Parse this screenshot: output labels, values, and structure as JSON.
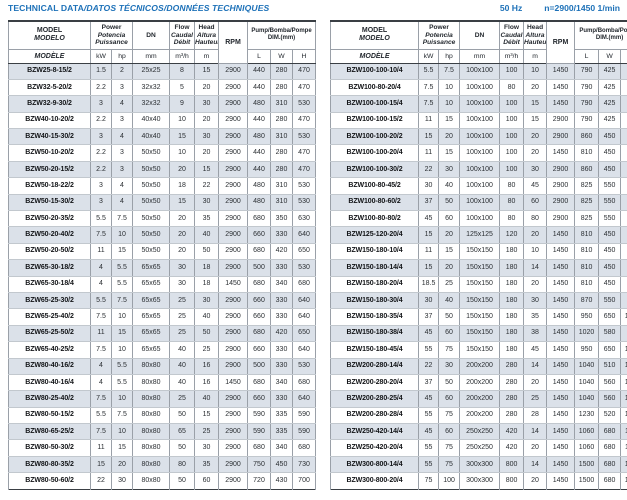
{
  "page": {
    "title_main": "TECHNICAL DATA",
    "title_rest": "/DATOS TÉCNICOS/DONNÉES TECHNIQUES",
    "frequency": "50 Hz",
    "speed": "n=2900/1450 1/min"
  },
  "colors": {
    "accent_blue": "#1d71b8",
    "row_shade": "#dbe1e9",
    "grid_line": "#9aa0a8",
    "heavy_line": "#3a3f44"
  },
  "header": {
    "model_line1": "MODEL",
    "model_line2": "MODELO",
    "model_line3": "MODÈLE",
    "power_line1": "Power",
    "power_line2": "Potencia",
    "power_line3": "Puissance",
    "unit_kw": "kW",
    "unit_hp": "hp",
    "dn": "DN",
    "unit_mm": "mm",
    "flow_line1": "Flow",
    "flow_line2": "Caudal",
    "flow_line3": "Débit",
    "unit_flow": "m³/h",
    "head_line1": "Head",
    "head_line2": "Altura",
    "head_line3": "Hauteur",
    "unit_m": "m",
    "rpm": "RPM",
    "dim_line1": "Pump/Bomba/Pompe",
    "dim_line2": "DIM.(mm)",
    "unit_l": "L",
    "unit_w": "W",
    "unit_h": "H"
  },
  "tables": {
    "left": {
      "rows": [
        [
          "BZW25-8-15/2",
          "1.5",
          "2",
          "25x25",
          "8",
          "15",
          "2900",
          "440",
          "280",
          "470"
        ],
        [
          "BZW32-5-20/2",
          "2.2",
          "3",
          "32x32",
          "5",
          "20",
          "2900",
          "440",
          "280",
          "470"
        ],
        [
          "BZW32-9-30/2",
          "3",
          "4",
          "32x32",
          "9",
          "30",
          "2900",
          "480",
          "310",
          "530"
        ],
        [
          "BZW40-10-20/2",
          "2.2",
          "3",
          "40x40",
          "10",
          "20",
          "2900",
          "440",
          "280",
          "470"
        ],
        [
          "BZW40-15-30/2",
          "3",
          "4",
          "40x40",
          "15",
          "30",
          "2900",
          "480",
          "310",
          "530"
        ],
        [
          "BZW50-10-20/2",
          "2.2",
          "3",
          "50x50",
          "10",
          "20",
          "2900",
          "440",
          "280",
          "470"
        ],
        [
          "BZW50-20-15/2",
          "2.2",
          "3",
          "50x50",
          "20",
          "15",
          "2900",
          "440",
          "280",
          "470"
        ],
        [
          "BZW50-18-22/2",
          "3",
          "4",
          "50x50",
          "18",
          "22",
          "2900",
          "480",
          "310",
          "530"
        ],
        [
          "BZW50-15-30/2",
          "3",
          "4",
          "50x50",
          "15",
          "30",
          "2900",
          "480",
          "310",
          "530"
        ],
        [
          "BZW50-20-35/2",
          "5.5",
          "7.5",
          "50x50",
          "20",
          "35",
          "2900",
          "680",
          "350",
          "630"
        ],
        [
          "BZW50-20-40/2",
          "7.5",
          "10",
          "50x50",
          "20",
          "40",
          "2900",
          "660",
          "330",
          "640"
        ],
        [
          "BZW50-20-50/2",
          "11",
          "15",
          "50x50",
          "20",
          "50",
          "2900",
          "680",
          "420",
          "650"
        ],
        [
          "BZW65-30-18/2",
          "4",
          "5.5",
          "65x65",
          "30",
          "18",
          "2900",
          "500",
          "330",
          "530"
        ],
        [
          "BZW65-30-18/4",
          "4",
          "5.5",
          "65x65",
          "30",
          "18",
          "1450",
          "680",
          "340",
          "680"
        ],
        [
          "BZW65-25-30/2",
          "5.5",
          "7.5",
          "65x65",
          "25",
          "30",
          "2900",
          "660",
          "330",
          "640"
        ],
        [
          "BZW65-25-40/2",
          "7.5",
          "10",
          "65x65",
          "25",
          "40",
          "2900",
          "660",
          "330",
          "640"
        ],
        [
          "BZW65-25-50/2",
          "11",
          "15",
          "65x65",
          "25",
          "50",
          "2900",
          "680",
          "420",
          "650"
        ],
        [
          "BZW65-40-25/2",
          "7.5",
          "10",
          "65x65",
          "40",
          "25",
          "2900",
          "660",
          "330",
          "640"
        ],
        [
          "BZW80-40-16/2",
          "4",
          "5.5",
          "80x80",
          "40",
          "16",
          "2900",
          "500",
          "330",
          "530"
        ],
        [
          "BZW80-40-16/4",
          "4",
          "5.5",
          "80x80",
          "40",
          "16",
          "1450",
          "680",
          "340",
          "680"
        ],
        [
          "BZW80-25-40/2",
          "7.5",
          "10",
          "80x80",
          "25",
          "40",
          "2900",
          "660",
          "330",
          "640"
        ],
        [
          "BZW80-50-15/2",
          "5.5",
          "7.5",
          "80x80",
          "50",
          "15",
          "2900",
          "590",
          "335",
          "590"
        ],
        [
          "BZW80-65-25/2",
          "7.5",
          "10",
          "80x80",
          "65",
          "25",
          "2900",
          "590",
          "335",
          "590"
        ],
        [
          "BZW80-50-30/2",
          "11",
          "15",
          "80x80",
          "50",
          "30",
          "2900",
          "680",
          "340",
          "680"
        ],
        [
          "BZW80-80-35/2",
          "15",
          "20",
          "80x80",
          "80",
          "35",
          "2900",
          "750",
          "450",
          "730"
        ],
        [
          "BZW80-50-60/2",
          "22",
          "30",
          "80x80",
          "50",
          "60",
          "2900",
          "720",
          "430",
          "700"
        ]
      ]
    },
    "right": {
      "rows": [
        [
          "BZW100-100-10/4",
          "5.5",
          "7.5",
          "100x100",
          "100",
          "10",
          "1450",
          "790",
          "425",
          "800"
        ],
        [
          "BZW100-80-20/4",
          "7.5",
          "10",
          "100x100",
          "80",
          "20",
          "1450",
          "790",
          "425",
          "800"
        ],
        [
          "BZW100-100-15/4",
          "7.5",
          "10",
          "100x100",
          "100",
          "15",
          "1450",
          "790",
          "425",
          "800"
        ],
        [
          "BZW100-100-15/2",
          "11",
          "15",
          "100x100",
          "100",
          "15",
          "2900",
          "790",
          "425",
          "800"
        ],
        [
          "BZW100-100-20/2",
          "15",
          "20",
          "100x100",
          "100",
          "20",
          "2900",
          "860",
          "450",
          "820"
        ],
        [
          "BZW100-100-20/4",
          "11",
          "15",
          "100x100",
          "100",
          "20",
          "1450",
          "810",
          "450",
          "880"
        ],
        [
          "BZW100-100-30/2",
          "22",
          "30",
          "100x100",
          "100",
          "30",
          "2900",
          "860",
          "450",
          "820"
        ],
        [
          "BZW100-80-45/2",
          "30",
          "40",
          "100x100",
          "80",
          "45",
          "2900",
          "825",
          "550",
          "840"
        ],
        [
          "BZW100-80-60/2",
          "37",
          "50",
          "100x100",
          "80",
          "60",
          "2900",
          "825",
          "550",
          "840"
        ],
        [
          "BZW100-80-80/2",
          "45",
          "60",
          "100x100",
          "80",
          "80",
          "2900",
          "825",
          "550",
          "840"
        ],
        [
          "BZW125-120-20/4",
          "15",
          "20",
          "125x125",
          "120",
          "20",
          "1450",
          "810",
          "450",
          "880"
        ],
        [
          "BZW150-180-10/4",
          "11",
          "15",
          "150x150",
          "180",
          "10",
          "1450",
          "810",
          "450",
          "880"
        ],
        [
          "BZW150-180-14/4",
          "15",
          "20",
          "150x150",
          "180",
          "14",
          "1450",
          "810",
          "450",
          "880"
        ],
        [
          "BZW150-180-20/4",
          "18.5",
          "25",
          "150x150",
          "180",
          "20",
          "1450",
          "810",
          "450",
          "880"
        ],
        [
          "BZW150-180-30/4",
          "30",
          "40",
          "150x150",
          "180",
          "30",
          "1450",
          "870",
          "550",
          "990"
        ],
        [
          "BZW150-180-35/4",
          "37",
          "50",
          "150x150",
          "180",
          "35",
          "1450",
          "950",
          "650",
          "1065"
        ],
        [
          "BZW150-180-38/4",
          "45",
          "60",
          "150x150",
          "180",
          "38",
          "1450",
          "1020",
          "580",
          "930"
        ],
        [
          "BZW150-180-45/4",
          "55",
          "75",
          "150x150",
          "180",
          "45",
          "1450",
          "950",
          "650",
          "1065"
        ],
        [
          "BZW200-280-14/4",
          "22",
          "30",
          "200x200",
          "280",
          "14",
          "1450",
          "1040",
          "510",
          "1020"
        ],
        [
          "BZW200-280-20/4",
          "37",
          "50",
          "200x200",
          "280",
          "20",
          "1450",
          "1040",
          "560",
          "1020"
        ],
        [
          "BZW200-280-25/4",
          "45",
          "60",
          "200x200",
          "280",
          "25",
          "1450",
          "1040",
          "560",
          "1020"
        ],
        [
          "BZW200-280-28/4",
          "55",
          "75",
          "200x200",
          "280",
          "28",
          "1450",
          "1230",
          "520",
          "1030"
        ],
        [
          "BZW250-420-14/4",
          "45",
          "60",
          "250x250",
          "420",
          "14",
          "1450",
          "1060",
          "680",
          "1100"
        ],
        [
          "BZW250-420-20/4",
          "55",
          "75",
          "250x250",
          "420",
          "20",
          "1450",
          "1060",
          "680",
          "1100"
        ],
        [
          "BZW300-800-14/4",
          "55",
          "75",
          "300x300",
          "800",
          "14",
          "1450",
          "1500",
          "680",
          "1350"
        ],
        [
          "BZW300-800-20/4",
          "75",
          "100",
          "300x300",
          "800",
          "20",
          "1450",
          "1500",
          "680",
          "1350"
        ]
      ]
    }
  }
}
